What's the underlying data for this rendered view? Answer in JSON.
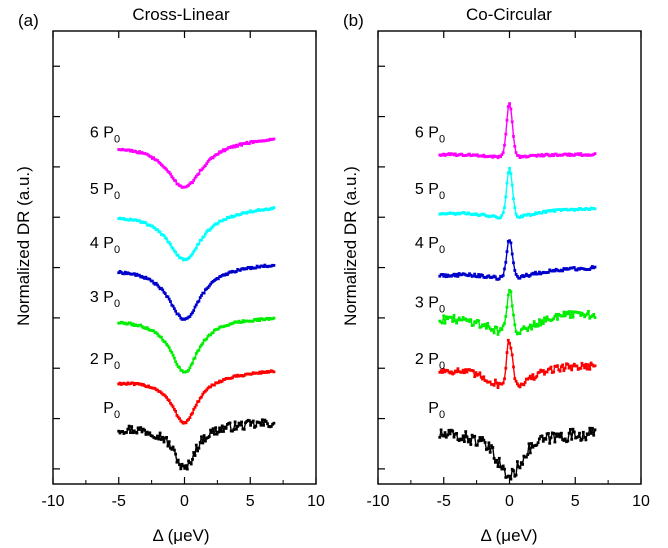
{
  "chart_data": [
    {
      "panel_label": "(a)",
      "title": "Cross-Linear",
      "type": "line",
      "xlabel": "Δ (μeV)",
      "ylabel": "Normalized DR (a.u.)",
      "xlim": [
        -10,
        10
      ],
      "x_ticks": [
        -10,
        -5,
        0,
        5,
        10
      ],
      "x_tick_labels": [
        "-10",
        "-5",
        "0",
        "5",
        "10"
      ],
      "ylim": [
        0,
        8.8
      ],
      "y_tick_count": 9,
      "grid": false,
      "legend": "none",
      "x_range": [
        -5,
        6.8
      ],
      "series": [
        {
          "label": "P",
          "subscript": "0",
          "color": "#000000",
          "profile": "dip",
          "offset": 1.0,
          "depth": 0.85,
          "width": 1.0,
          "left_level": 0.1,
          "right_level": 0.2,
          "noise": 0.09,
          "label_y": 1.5
        },
        {
          "label": "2 P",
          "subscript": "0",
          "color": "#ff0000",
          "profile": "dip",
          "offset": 2.0,
          "depth": 0.9,
          "width": 1.2,
          "left_level": 0.0,
          "right_level": 0.22,
          "noise": 0.02,
          "label_y": 2.45
        },
        {
          "label": "3 P",
          "subscript": "0",
          "color": "#00ee00",
          "profile": "dip",
          "offset": 3.2,
          "depth": 1.05,
          "width": 1.3,
          "left_level": 0.0,
          "right_level": 0.05,
          "noise": 0.02,
          "label_y": 3.65
        },
        {
          "label": "4 P",
          "subscript": "0",
          "color": "#0000cc",
          "profile": "dip",
          "offset": 4.2,
          "depth": 1.05,
          "width": 1.5,
          "left_level": 0.0,
          "right_level": 0.1,
          "noise": 0.02,
          "label_y": 4.7
        },
        {
          "label": "5 P",
          "subscript": "0",
          "color": "#00ffff",
          "profile": "dip",
          "offset": 5.25,
          "depth": 0.95,
          "width": 1.6,
          "left_level": 0.0,
          "right_level": 0.15,
          "noise": 0.02,
          "label_y": 5.75
        },
        {
          "label": "6 P",
          "subscript": "0",
          "color": "#ff00ff",
          "profile": "dip",
          "offset": 6.6,
          "depth": 0.9,
          "width": 1.7,
          "left_level": 0.0,
          "right_level": 0.15,
          "noise": 0.02,
          "label_y": 6.85
        }
      ]
    },
    {
      "panel_label": "(b)",
      "title": "Co-Circular",
      "type": "line",
      "xlabel": "Δ (μeV)",
      "ylabel": "Normalized DR (a.u.)",
      "xlim": [
        -10,
        10
      ],
      "x_ticks": [
        -10,
        -5,
        0,
        5,
        10
      ],
      "x_tick_labels": [
        "-10",
        "-5",
        "0",
        "5",
        "10"
      ],
      "ylim": [
        0,
        8.8
      ],
      "y_tick_count": 9,
      "grid": false,
      "legend": "none",
      "x_range": [
        -5.3,
        6.5
      ],
      "series": [
        {
          "label": "P",
          "subscript": "0",
          "color": "#000000",
          "profile": "dip",
          "offset": 1.0,
          "depth": 0.85,
          "width": 1.2,
          "left_level": 0.0,
          "right_level": 0.0,
          "noise": 0.12,
          "label_y": 1.5
        },
        {
          "label": "2 P",
          "subscript": "0",
          "color": "#ff0000",
          "profile": "peak",
          "offset": 2.0,
          "peak": 0.9,
          "dip": 0.35,
          "left_level": 0.2,
          "right_level": 0.3,
          "noise": 0.07,
          "label_y": 2.45
        },
        {
          "label": "3 P",
          "subscript": "0",
          "color": "#00ee00",
          "profile": "peak",
          "offset": 3.05,
          "peak": 0.8,
          "dip": 0.3,
          "left_level": 0.15,
          "right_level": 0.25,
          "noise": 0.08,
          "label_y": 3.55
        },
        {
          "label": "4 P",
          "subscript": "0",
          "color": "#0000cc",
          "profile": "peak",
          "offset": 4.0,
          "peak": 0.75,
          "dip": 0.12,
          "left_level": 0.05,
          "right_level": 0.2,
          "noise": 0.03,
          "label_y": 4.7
        },
        {
          "label": "5 P",
          "subscript": "0",
          "color": "#00ffff",
          "profile": "peak",
          "offset": 5.2,
          "peak": 0.95,
          "dip": 0.12,
          "left_level": 0.05,
          "right_level": 0.15,
          "noise": 0.02,
          "label_y": 5.75
        },
        {
          "label": "6 P",
          "subscript": "0",
          "color": "#ff00ff",
          "profile": "peak",
          "offset": 6.4,
          "peak": 1.05,
          "dip": 0.05,
          "left_level": 0.0,
          "right_level": 0.0,
          "noise": 0.02,
          "label_y": 6.85
        }
      ]
    }
  ]
}
